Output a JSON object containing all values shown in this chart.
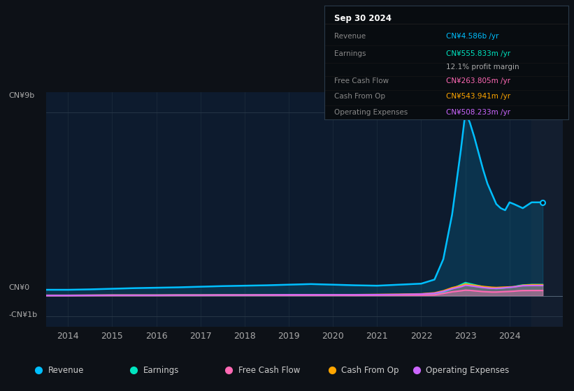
{
  "background_color": "#0d1117",
  "plot_bg_color": "#0d1b2e",
  "info_box": {
    "title": "Sep 30 2024",
    "rows": [
      {
        "label": "Revenue",
        "value": "CN¥4.586b /yr",
        "value_color": "#00bfff"
      },
      {
        "label": "Earnings",
        "value": "CN¥555.833m /yr",
        "value_color": "#00e5c0"
      },
      {
        "label": "",
        "value": "12.1% profit margin",
        "value_color": "#aaaaaa"
      },
      {
        "label": "Free Cash Flow",
        "value": "CN¥263.805m /yr",
        "value_color": "#ff69b4"
      },
      {
        "label": "Cash From Op",
        "value": "CN¥543.941m /yr",
        "value_color": "#ffa500"
      },
      {
        "label": "Operating Expenses",
        "value": "CN¥508.233m /yr",
        "value_color": "#cc66ff"
      }
    ]
  },
  "y_labels": [
    "CN¥9b",
    "CN¥0",
    "-CN¥1b"
  ],
  "y_ticks": [
    9000000000,
    0,
    -1000000000
  ],
  "x_ticks": [
    2014,
    2015,
    2016,
    2017,
    2018,
    2019,
    2020,
    2021,
    2022,
    2023,
    2024
  ],
  "ylim": [
    -1500000000,
    10000000000
  ],
  "xlim": [
    2013.5,
    2025.2
  ],
  "legend": [
    {
      "label": "Revenue",
      "color": "#00bfff"
    },
    {
      "label": "Earnings",
      "color": "#00e5c0"
    },
    {
      "label": "Free Cash Flow",
      "color": "#ff69b4"
    },
    {
      "label": "Cash From Op",
      "color": "#ffa500"
    },
    {
      "label": "Operating Expenses",
      "color": "#cc66ff"
    }
  ],
  "series": {
    "years": [
      2013.5,
      2014.0,
      2014.5,
      2015.0,
      2015.5,
      2016.0,
      2016.5,
      2017.0,
      2017.5,
      2018.0,
      2018.5,
      2019.0,
      2019.5,
      2020.0,
      2020.5,
      2021.0,
      2021.5,
      2022.0,
      2022.3,
      2022.5,
      2022.7,
      2022.9,
      2023.0,
      2023.1,
      2023.2,
      2023.3,
      2023.4,
      2023.5,
      2023.6,
      2023.7,
      2023.8,
      2023.9,
      2024.0,
      2024.1,
      2024.2,
      2024.3,
      2024.5,
      2024.7,
      2024.75
    ],
    "revenue": [
      300000000,
      300000000,
      320000000,
      350000000,
      380000000,
      400000000,
      420000000,
      450000000,
      480000000,
      500000000,
      520000000,
      550000000,
      580000000,
      550000000,
      520000000,
      500000000,
      550000000,
      600000000,
      800000000,
      1800000000,
      4000000000,
      7200000000,
      9000000000,
      8500000000,
      7800000000,
      7000000000,
      6200000000,
      5500000000,
      5000000000,
      4500000000,
      4300000000,
      4200000000,
      4586000000,
      4500000000,
      4400000000,
      4300000000,
      4586000000,
      4586000000,
      4586000000
    ],
    "earnings": [
      20000000,
      20000000,
      25000000,
      30000000,
      30000000,
      30000000,
      35000000,
      35000000,
      40000000,
      40000000,
      45000000,
      50000000,
      50000000,
      50000000,
      50000000,
      50000000,
      60000000,
      70000000,
      90000000,
      180000000,
      350000000,
      550000000,
      650000000,
      600000000,
      550000000,
      500000000,
      450000000,
      400000000,
      380000000,
      360000000,
      380000000,
      400000000,
      420000000,
      450000000,
      500000000,
      530000000,
      555800000,
      555800000,
      555800000
    ],
    "fcf": [
      10000000,
      10000000,
      15000000,
      20000000,
      20000000,
      20000000,
      25000000,
      25000000,
      28000000,
      30000000,
      30000000,
      30000000,
      28000000,
      30000000,
      25000000,
      30000000,
      35000000,
      40000000,
      50000000,
      120000000,
      200000000,
      250000000,
      280000000,
      270000000,
      250000000,
      230000000,
      210000000,
      200000000,
      190000000,
      190000000,
      200000000,
      210000000,
      220000000,
      230000000,
      250000000,
      260000000,
      263800000,
      263800000,
      263800000
    ],
    "cashfromop": [
      30000000,
      30000000,
      35000000,
      40000000,
      40000000,
      40000000,
      45000000,
      45000000,
      50000000,
      50000000,
      55000000,
      60000000,
      60000000,
      60000000,
      60000000,
      70000000,
      80000000,
      100000000,
      150000000,
      250000000,
      400000000,
      500000000,
      580000000,
      550000000,
      520000000,
      490000000,
      460000000,
      440000000,
      420000000,
      410000000,
      420000000,
      430000000,
      440000000,
      450000000,
      480000000,
      520000000,
      543900000,
      543900000,
      543900000
    ],
    "opex": [
      25000000,
      25000000,
      30000000,
      35000000,
      35000000,
      35000000,
      40000000,
      40000000,
      45000000,
      45000000,
      50000000,
      55000000,
      55000000,
      55000000,
      55000000,
      60000000,
      70000000,
      90000000,
      130000000,
      220000000,
      350000000,
      450000000,
      520000000,
      500000000,
      470000000,
      440000000,
      410000000,
      390000000,
      370000000,
      370000000,
      380000000,
      400000000,
      420000000,
      440000000,
      470000000,
      500000000,
      508200000,
      508200000,
      508200000
    ]
  }
}
